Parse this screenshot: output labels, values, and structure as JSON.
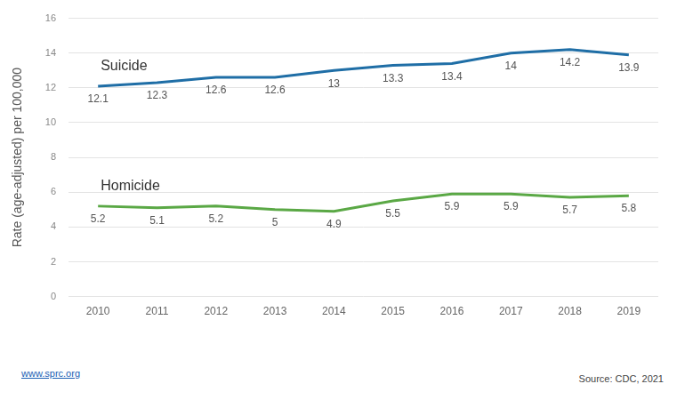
{
  "chart_data": {
    "type": "line",
    "y_label": "Rate (age-adjusted) per 100,000",
    "categories": [
      "2010",
      "2011",
      "2012",
      "2013",
      "2014",
      "2015",
      "2016",
      "2017",
      "2018",
      "2019"
    ],
    "series": [
      {
        "name": "Suicide",
        "color": "#1f6ea6",
        "values": [
          12.1,
          12.3,
          12.6,
          12.6,
          13,
          13.3,
          13.4,
          14,
          14.2,
          13.9
        ]
      },
      {
        "name": "Homicide",
        "color": "#5aa845",
        "values": [
          5.2,
          5.1,
          5.2,
          5,
          4.9,
          5.5,
          5.9,
          5.9,
          5.7,
          5.8
        ]
      }
    ],
    "ylim": [
      0,
      16
    ],
    "yticks": [
      0,
      2,
      4,
      6,
      8,
      10,
      12,
      14,
      16
    ],
    "grid": true,
    "data_labels": true,
    "link": "www.sprc.org",
    "source": "Source: CDC, 2021"
  }
}
